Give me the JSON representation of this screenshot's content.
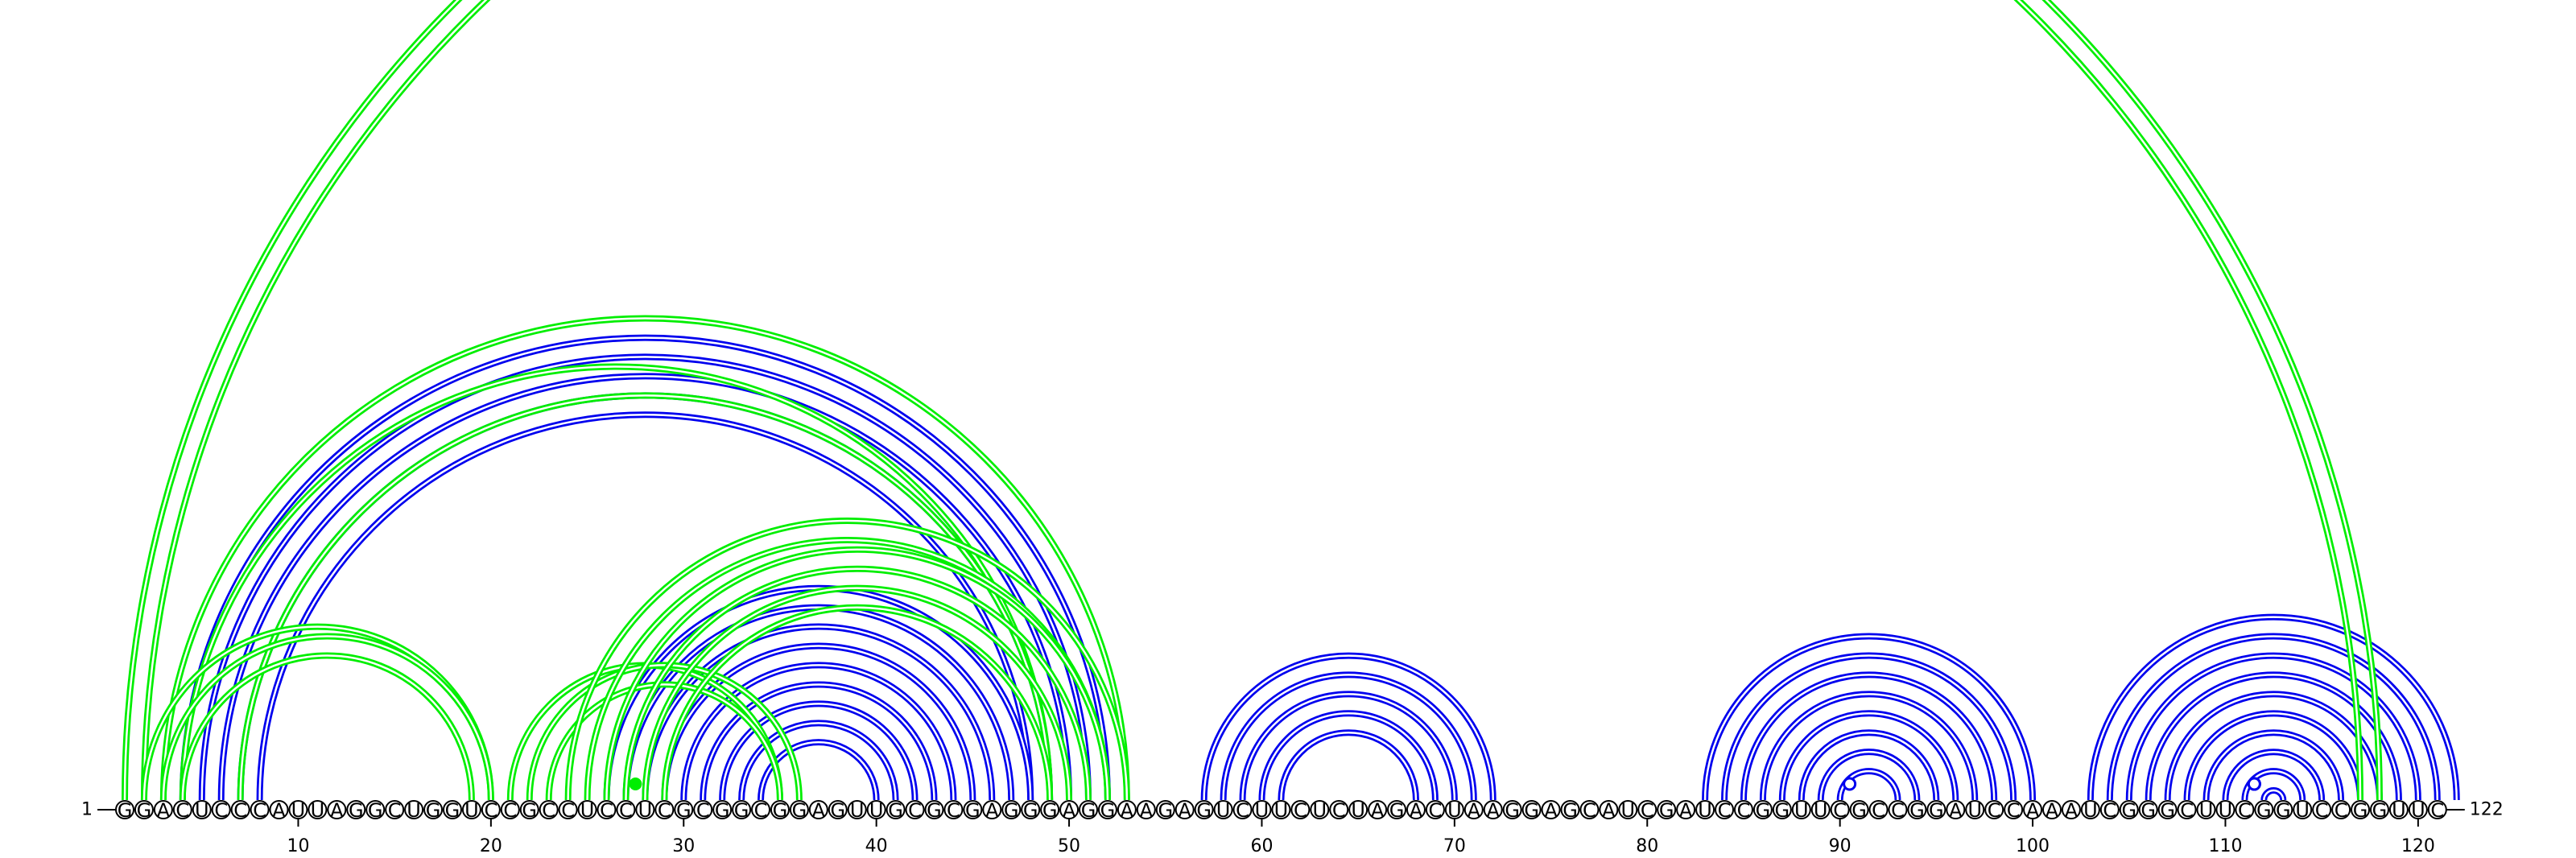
{
  "chart_data": {
    "type": "arc-diagram",
    "sequence": "GGACUCCCAUUAGGCUGGUCCGCCUCCUCGCGGCGGAGUUGCGCGAGGGAGGAAGAGUCUUCUCUAGACUAAGGAGCAUCGAUCCGGUUCGCCGGAUCCAAAUCGGGCUUCGGUCCGGUUC",
    "start_label": "1",
    "end_label": "122",
    "ticks": [
      10,
      20,
      30,
      40,
      50,
      60,
      70,
      80,
      90,
      100,
      110,
      120
    ],
    "colors": {
      "predicted": "#0000ee",
      "reference": "#00ee00"
    },
    "series": [
      {
        "name": "",
        "color": "#0000ee",
        "pairs": [
          [
            4,
            52
          ],
          [
            5,
            51
          ],
          [
            6,
            50
          ],
          [
            7,
            49
          ],
          [
            8,
            48
          ],
          [
            26,
            48
          ],
          [
            27,
            47
          ],
          [
            28,
            46
          ],
          [
            29,
            45
          ],
          [
            30,
            44
          ],
          [
            31,
            43
          ],
          [
            32,
            42
          ],
          [
            33,
            41
          ],
          [
            34,
            40
          ],
          [
            57,
            72
          ],
          [
            58,
            71
          ],
          [
            59,
            70
          ],
          [
            60,
            69
          ],
          [
            61,
            68
          ],
          [
            83,
            100
          ],
          [
            84,
            99
          ],
          [
            85,
            98
          ],
          [
            86,
            97
          ],
          [
            87,
            96
          ],
          [
            88,
            95
          ],
          [
            89,
            94
          ],
          [
            90,
            93
          ],
          [
            103,
            122
          ],
          [
            104,
            121
          ],
          [
            105,
            120
          ],
          [
            106,
            119
          ],
          [
            107,
            118
          ],
          [
            108,
            117
          ],
          [
            109,
            116
          ],
          [
            110,
            115
          ],
          [
            111,
            114
          ],
          [
            112,
            113
          ]
        ],
        "markers": [
          90.5,
          111.5,
          111.5,
          111.5
        ]
      },
      {
        "name": "",
        "color": "#00ee00",
        "pairs": [
          [
            1,
            118
          ],
          [
            2,
            117
          ],
          [
            3,
            53
          ],
          [
            4,
            49
          ],
          [
            7,
            49
          ],
          [
            2,
            20
          ],
          [
            3,
            20
          ],
          [
            4,
            19
          ],
          [
            21,
            35
          ],
          [
            22,
            36
          ],
          [
            23,
            35
          ],
          [
            24,
            53
          ],
          [
            25,
            52
          ],
          [
            26,
            52
          ],
          [
            27,
            51
          ],
          [
            28,
            50
          ],
          [
            29,
            49
          ]
        ],
        "markers": [
          27.5
        ]
      }
    ]
  }
}
